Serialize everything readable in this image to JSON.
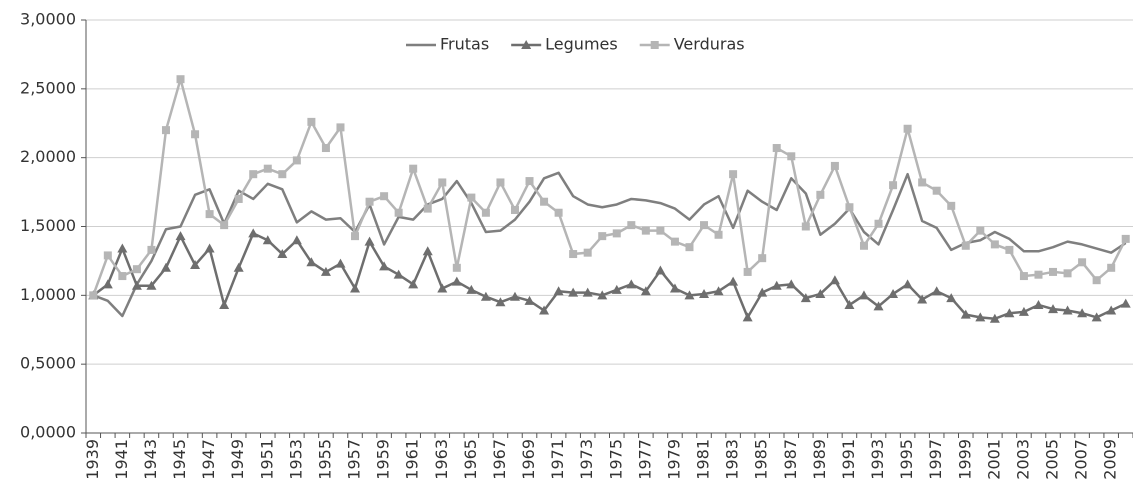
{
  "chart_data": {
    "type": "line",
    "categories": [
      "1939",
      null,
      "1941",
      null,
      "1943",
      null,
      "1945",
      null,
      "1947",
      null,
      "1949",
      null,
      "1951",
      null,
      "1953",
      null,
      "1955",
      null,
      "1957",
      null,
      "1959",
      null,
      "1961",
      null,
      "1963",
      null,
      "1965",
      null,
      "1967",
      null,
      "1969",
      null,
      "1971",
      null,
      "1973",
      null,
      "1975",
      null,
      "1977",
      null,
      "1979",
      null,
      "1981",
      null,
      "1983",
      null,
      "1985",
      null,
      "1987",
      null,
      "1989",
      null,
      "1991",
      null,
      "1993",
      null,
      "1995",
      null,
      "1997",
      null,
      "1999",
      null,
      "2001",
      null,
      "2003",
      null,
      "2005",
      null,
      "2007",
      null,
      "2009",
      null
    ],
    "series": [
      {
        "name": "Frutas",
        "color": "#7f7f7f",
        "marker": "none",
        "values": [
          1.0,
          0.96,
          0.85,
          1.08,
          1.25,
          1.48,
          1.5,
          1.73,
          1.77,
          1.52,
          1.76,
          1.7,
          1.81,
          1.77,
          1.53,
          1.61,
          1.55,
          1.56,
          1.46,
          1.66,
          1.37,
          1.57,
          1.55,
          1.66,
          1.7,
          1.83,
          1.67,
          1.46,
          1.47,
          1.55,
          1.68,
          1.85,
          1.89,
          1.72,
          1.66,
          1.64,
          1.66,
          1.7,
          1.69,
          1.67,
          1.63,
          1.55,
          1.66,
          1.72,
          1.49,
          1.76,
          1.68,
          1.62,
          1.85,
          1.74,
          1.44,
          1.52,
          1.63,
          1.46,
          1.37,
          1.62,
          1.88,
          1.54,
          1.49,
          1.33,
          1.38,
          1.4,
          1.46,
          1.41,
          1.32,
          1.32,
          1.35,
          1.39,
          1.37,
          1.34,
          1.31,
          1.38
        ]
      },
      {
        "name": "Legumes",
        "color": "#6e6e6e",
        "marker": "triangle",
        "values": [
          1.0,
          1.08,
          1.34,
          1.07,
          1.07,
          1.2,
          1.43,
          1.22,
          1.34,
          0.93,
          1.2,
          1.45,
          1.4,
          1.3,
          1.4,
          1.24,
          1.17,
          1.23,
          1.05,
          1.39,
          1.21,
          1.15,
          1.08,
          1.32,
          1.05,
          1.1,
          1.04,
          0.99,
          0.95,
          0.99,
          0.96,
          0.89,
          1.03,
          1.02,
          1.02,
          1.0,
          1.04,
          1.08,
          1.03,
          1.18,
          1.05,
          1.0,
          1.01,
          1.03,
          1.1,
          0.84,
          1.02,
          1.07,
          1.08,
          0.98,
          1.01,
          1.11,
          0.93,
          1.0,
          0.92,
          1.01,
          1.08,
          0.97,
          1.03,
          0.98,
          0.86,
          0.84,
          0.83,
          0.87,
          0.88,
          0.93,
          0.9,
          0.89,
          0.87,
          0.84,
          0.89,
          0.94
        ]
      },
      {
        "name": "Verduras",
        "color": "#b5b5b5",
        "marker": "square",
        "values": [
          1.0,
          1.29,
          1.14,
          1.19,
          1.33,
          2.2,
          2.57,
          2.17,
          1.59,
          1.51,
          1.7,
          1.88,
          1.92,
          1.88,
          1.98,
          2.26,
          2.07,
          2.22,
          1.43,
          1.68,
          1.72,
          1.6,
          1.92,
          1.63,
          1.82,
          1.2,
          1.71,
          1.6,
          1.82,
          1.62,
          1.83,
          1.68,
          1.6,
          1.3,
          1.31,
          1.43,
          1.45,
          1.51,
          1.47,
          1.47,
          1.39,
          1.35,
          1.51,
          1.44,
          1.88,
          1.17,
          1.27,
          2.07,
          2.01,
          1.5,
          1.73,
          1.94,
          1.64,
          1.36,
          1.52,
          1.8,
          2.21,
          1.82,
          1.76,
          1.65,
          1.36,
          1.47,
          1.37,
          1.33,
          1.14,
          1.15,
          1.17,
          1.16,
          1.24,
          1.11,
          1.2,
          1.41
        ]
      }
    ],
    "ylim": [
      0,
      3
    ],
    "yticks": [
      {
        "value": 0,
        "label": "0,0000"
      },
      {
        "value": 0.5,
        "label": "0,5000"
      },
      {
        "value": 1,
        "label": "1,0000"
      },
      {
        "value": 1.5,
        "label": "1,5000"
      },
      {
        "value": 2,
        "label": "2,0000"
      },
      {
        "value": 2.5,
        "label": "2,5000"
      },
      {
        "value": 3,
        "label": "3,0000"
      }
    ],
    "grid": true,
    "legend": "top"
  }
}
